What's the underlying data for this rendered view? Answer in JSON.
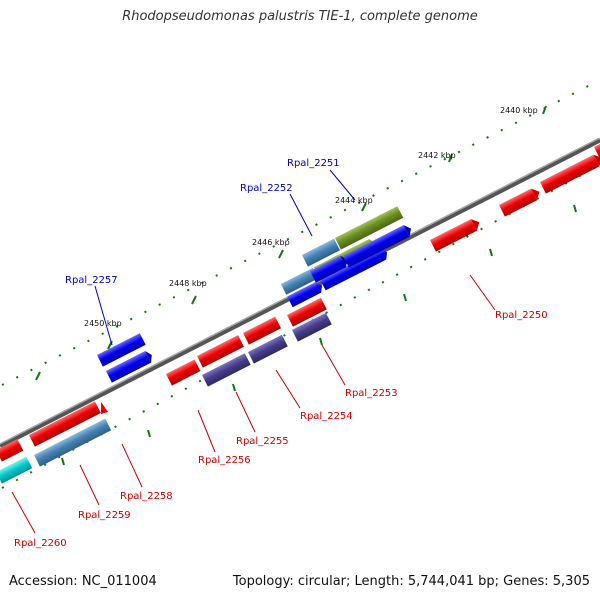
{
  "title": "Rhodopseudomonas palustris TIE-1, complete genome",
  "footer": {
    "accession": "Accession: NC_011004",
    "topology": "Topology: circular; Length: 5,744,041 bp; Genes: 5,305"
  },
  "ticks": [
    "2440 kbp",
    "2442 kbp",
    "2444 kbp",
    "2446 kbp",
    "2448 kbp",
    "2450 kbp"
  ],
  "labels_above": [
    "Rpal_2251",
    "Rpal_2252",
    "Rpal_2257"
  ],
  "labels_below": [
    "Rpal_2250",
    "Rpal_2253",
    "Rpal_2254",
    "Rpal_2255",
    "Rpal_2256",
    "Rpal_2258",
    "Rpal_2259",
    "Rpal_2260"
  ],
  "colors": {
    "backbone": "#777777",
    "red": "#ee0000",
    "blue": "#0000ee",
    "steelblue": "#4682b4",
    "olive": "#6b8e23",
    "slate": "#483d8b",
    "cyan": "#00cccc",
    "tick": "#117711"
  }
}
